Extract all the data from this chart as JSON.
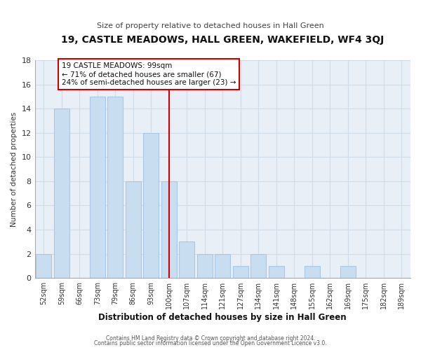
{
  "title": "19, CASTLE MEADOWS, HALL GREEN, WAKEFIELD, WF4 3QJ",
  "subtitle": "Size of property relative to detached houses in Hall Green",
  "xlabel": "Distribution of detached houses by size in Hall Green",
  "ylabel": "Number of detached properties",
  "footer_lines": [
    "Contains HM Land Registry data © Crown copyright and database right 2024.",
    "Contains public sector information licensed under the Open Government Licence v3.0."
  ],
  "bar_labels": [
    "52sqm",
    "59sqm",
    "66sqm",
    "73sqm",
    "79sqm",
    "86sqm",
    "93sqm",
    "100sqm",
    "107sqm",
    "114sqm",
    "121sqm",
    "127sqm",
    "134sqm",
    "141sqm",
    "148sqm",
    "155sqm",
    "162sqm",
    "169sqm",
    "175sqm",
    "182sqm",
    "189sqm"
  ],
  "bar_values": [
    2,
    14,
    0,
    15,
    15,
    8,
    12,
    8,
    3,
    2,
    2,
    1,
    2,
    1,
    0,
    1,
    0,
    1,
    0,
    0,
    0
  ],
  "bar_color": "#c9ddf0",
  "bar_edge_color": "#a8c8e8",
  "highlight_index": 7,
  "highlight_line_color": "#cc0000",
  "ylim": [
    0,
    18
  ],
  "yticks": [
    0,
    2,
    4,
    6,
    8,
    10,
    12,
    14,
    16,
    18
  ],
  "annotation_text": "19 CASTLE MEADOWS: 99sqm\n← 71% of detached houses are smaller (67)\n24% of semi-detached houses are larger (23) →",
  "annotation_box_color": "#ffffff",
  "annotation_box_edge": "#cc0000",
  "grid_color": "#d0dce8",
  "background_color": "#ffffff",
  "plot_bg_color": "#e8eff7"
}
